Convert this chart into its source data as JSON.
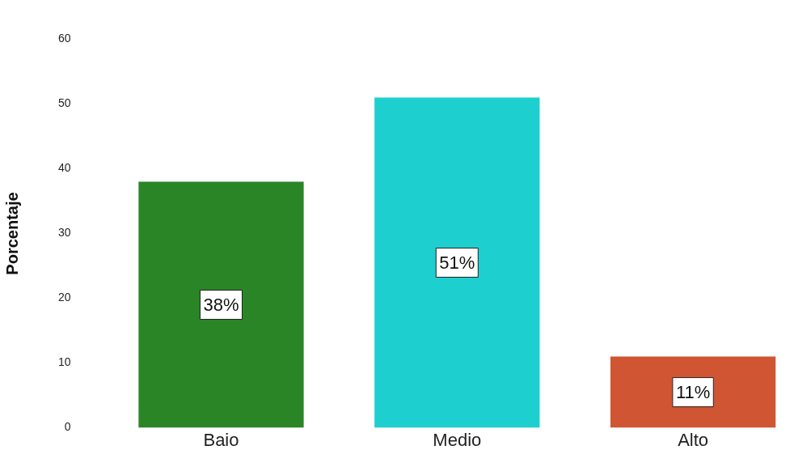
{
  "chart_data": {
    "type": "bar",
    "ylabel": "Porcentaje",
    "categories": [
      "Baio",
      "Medio",
      "Alto"
    ],
    "values": [
      38,
      51,
      11
    ],
    "colors": [
      "#2a8527",
      "#1ecfcf",
      "#d05533"
    ],
    "value_labels": [
      "38%",
      "51%",
      "11%"
    ],
    "ylim": [
      0,
      60
    ],
    "yticks": [
      0,
      10,
      20,
      30,
      40,
      50,
      60
    ],
    "grid": false,
    "legend": false
  }
}
